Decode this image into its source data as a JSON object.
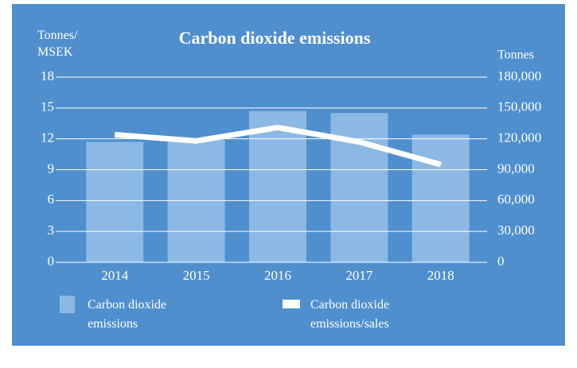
{
  "chart_data": {
    "type": "bar_line",
    "title": "Carbon dioxide emissions",
    "ylabel": "Tonnes/ MSEK",
    "y2label": "Tonnes",
    "categories": [
      "2014",
      "2015",
      "2016",
      "2017",
      "2018"
    ],
    "series": [
      {
        "name": "Carbon dioxide emissions",
        "type": "bar",
        "axis": "y2",
        "color": "#8cb9e4",
        "values": [
          117000,
          119000,
          147000,
          145000,
          124000
        ]
      },
      {
        "name": "Carbon dioxide emissions/sales",
        "type": "line",
        "axis": "y",
        "color": "#ffffff",
        "values": [
          12.4,
          11.8,
          13.1,
          11.7,
          9.5
        ]
      }
    ],
    "ylim": [
      0,
      18
    ],
    "yticks": [
      0,
      3,
      6,
      9,
      12,
      15,
      18
    ],
    "y2lim": [
      0,
      180000
    ],
    "y2ticks": [
      0,
      {
        "value": 30000,
        "label": "30,000"
      },
      {
        "value": 60000,
        "label": "60,000"
      },
      {
        "value": 90000,
        "label": "90,000"
      },
      {
        "value": 120000,
        "label": "120,000"
      },
      {
        "value": 150000,
        "label": "150,000"
      },
      {
        "value": 180000,
        "label": "180,000"
      }
    ],
    "grid": true
  }
}
